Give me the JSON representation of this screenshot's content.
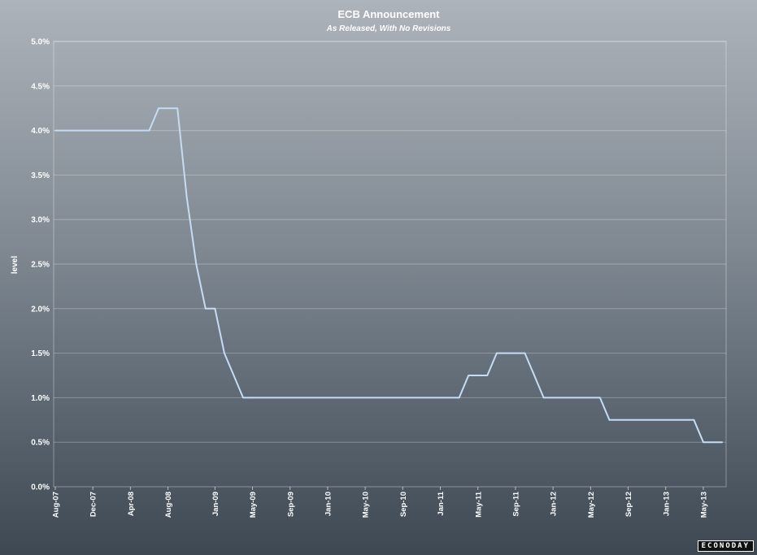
{
  "chart_data": {
    "type": "line",
    "title": "ECB Announcement",
    "subtitle": "As Released, With No Revisions",
    "xlabel": "",
    "ylabel": "level",
    "ylim": [
      0,
      5
    ],
    "y_ticks": [
      "0.0%",
      "0.5%",
      "1.0%",
      "1.5%",
      "2.0%",
      "2.5%",
      "3.0%",
      "3.5%",
      "4.0%",
      "4.5%",
      "5.0%"
    ],
    "x_ticks": [
      "Aug-07",
      "Dec-07",
      "Apr-08",
      "Aug-08",
      "Jan-09",
      "May-09",
      "Sep-09",
      "Jan-10",
      "May-10",
      "Sep-10",
      "Jan-11",
      "May-11",
      "Sep-11",
      "Jan-12",
      "May-12",
      "Sep-12",
      "Jan-13",
      "May-13"
    ],
    "grid": true,
    "series": [
      {
        "color": "#c6dcf2",
        "x": [
          "2007-08",
          "2008-06",
          "2008-07",
          "2008-09",
          "2008-10",
          "2008-11",
          "2008-12",
          "2009-01",
          "2009-02",
          "2009-03",
          "2009-04",
          "2009-05",
          "2011-03",
          "2011-04",
          "2011-06",
          "2011-07",
          "2011-10",
          "2011-11",
          "2011-12",
          "2012-06",
          "2012-07",
          "2013-04",
          "2013-05",
          "2013-07"
        ],
        "values": [
          4.0,
          4.0,
          4.25,
          4.25,
          3.25,
          2.5,
          2.0,
          2.0,
          1.5,
          1.25,
          1.0,
          1.0,
          1.0,
          1.25,
          1.25,
          1.5,
          1.5,
          1.25,
          1.0,
          1.0,
          0.75,
          0.75,
          0.5,
          0.5
        ]
      }
    ]
  },
  "logo_text": "ECONODAY"
}
